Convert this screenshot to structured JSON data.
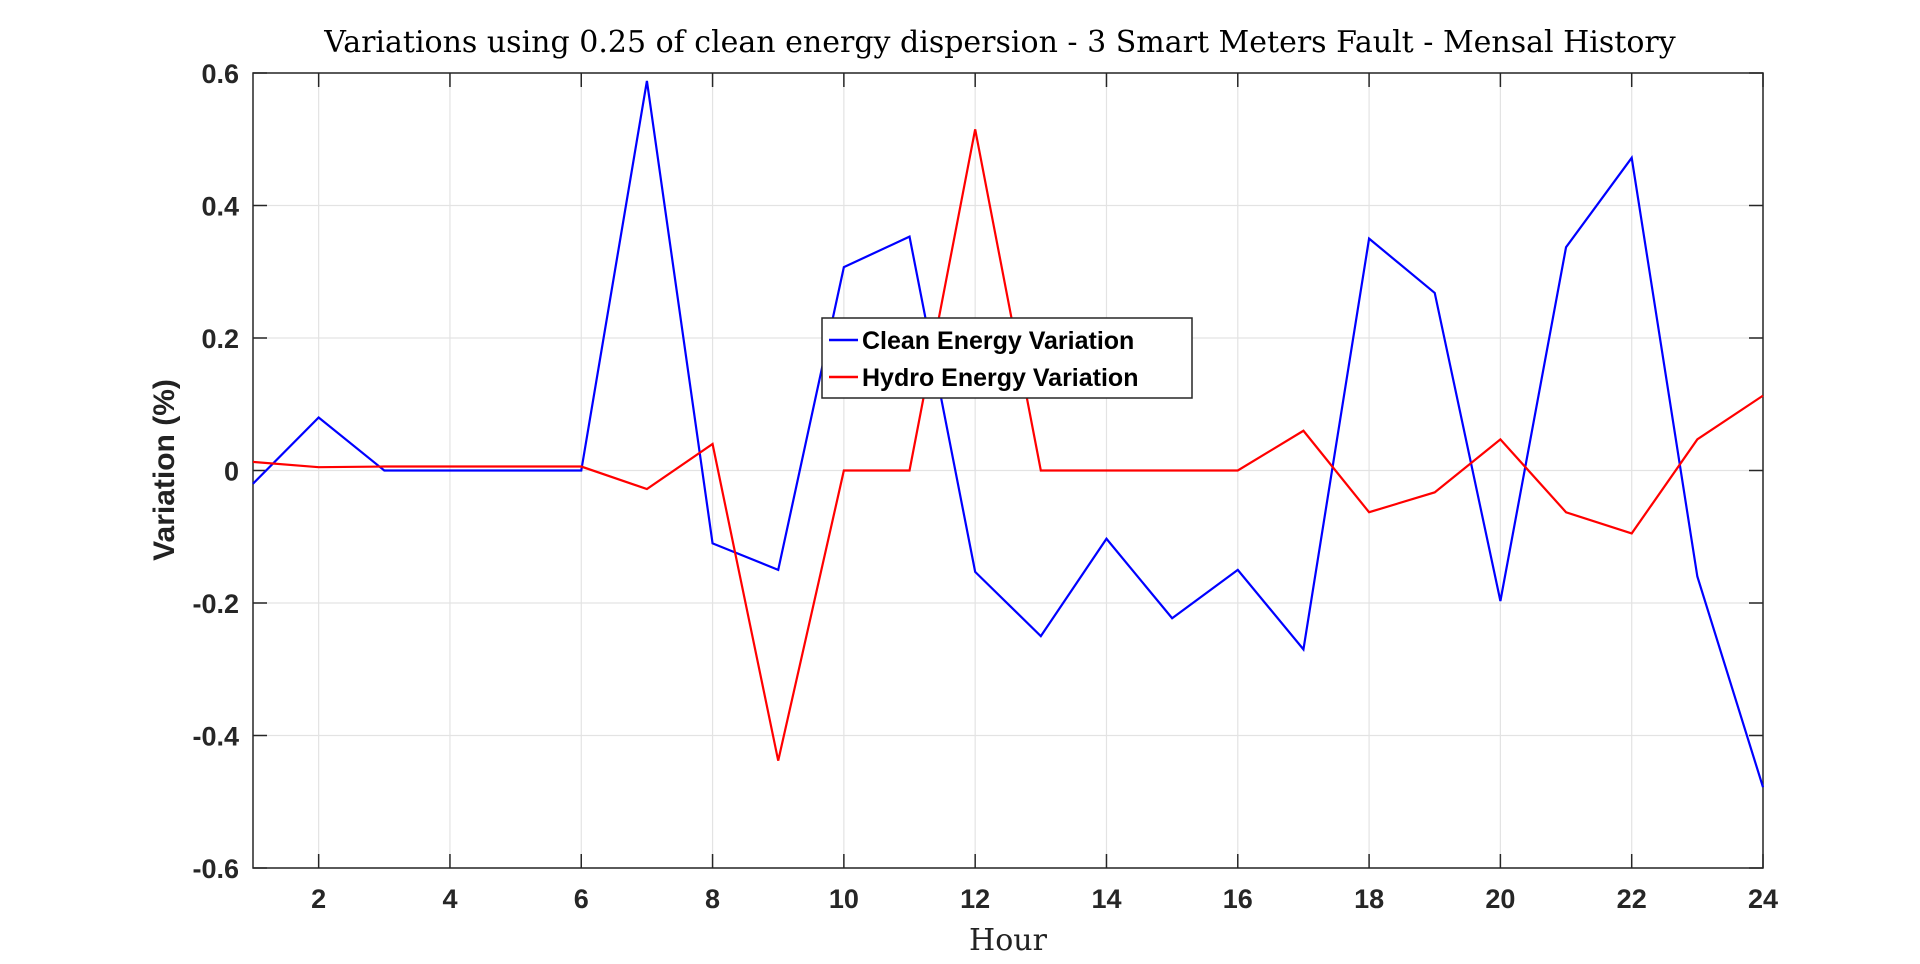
{
  "chart_data": {
    "type": "line",
    "title": "Variations using 0.25 of clean energy dispersion - 3 Smart Meters Fault - Mensal History",
    "xlabel": "Hour",
    "ylabel": "Variation (%)",
    "xlim": [
      1,
      24
    ],
    "ylim": [
      -0.6,
      0.6
    ],
    "xticks": [
      2,
      4,
      6,
      8,
      10,
      12,
      14,
      16,
      18,
      20,
      22,
      24
    ],
    "yticks": [
      -0.6,
      -0.4,
      -0.2,
      0,
      0.2,
      0.4,
      0.6
    ],
    "xtick_labels": [
      "2",
      "4",
      "6",
      "8",
      "10",
      "12",
      "14",
      "16",
      "18",
      "20",
      "22",
      "24"
    ],
    "ytick_labels": [
      "-0.6",
      "-0.4",
      "-0.2",
      "0",
      "0.2",
      "0.4",
      "0.6"
    ],
    "grid": true,
    "legend_position": "center",
    "x": [
      1,
      2,
      3,
      4,
      5,
      6,
      7,
      8,
      9,
      10,
      11,
      12,
      13,
      14,
      15,
      16,
      17,
      18,
      19,
      20,
      21,
      22,
      23,
      24
    ],
    "series": [
      {
        "name": "Clean Energy Variation",
        "color": "#0000ff",
        "values": [
          -0.02,
          0.08,
          0.0,
          0.0,
          0.0,
          0.0,
          0.588,
          -0.11,
          -0.15,
          0.307,
          0.353,
          -0.153,
          -0.25,
          -0.103,
          -0.223,
          -0.15,
          -0.27,
          0.35,
          0.268,
          -0.197,
          0.337,
          0.472,
          -0.16,
          -0.478
        ]
      },
      {
        "name": "Hydro Energy Variation",
        "color": "#ff0000",
        "values": [
          0.013,
          0.005,
          0.006,
          0.006,
          0.006,
          0.006,
          -0.028,
          0.04,
          -0.438,
          0.0,
          0.0,
          0.515,
          0.0,
          0.0,
          0.0,
          0.0,
          0.06,
          -0.063,
          -0.033,
          0.047,
          -0.063,
          -0.095,
          0.047,
          0.113
        ]
      }
    ]
  }
}
